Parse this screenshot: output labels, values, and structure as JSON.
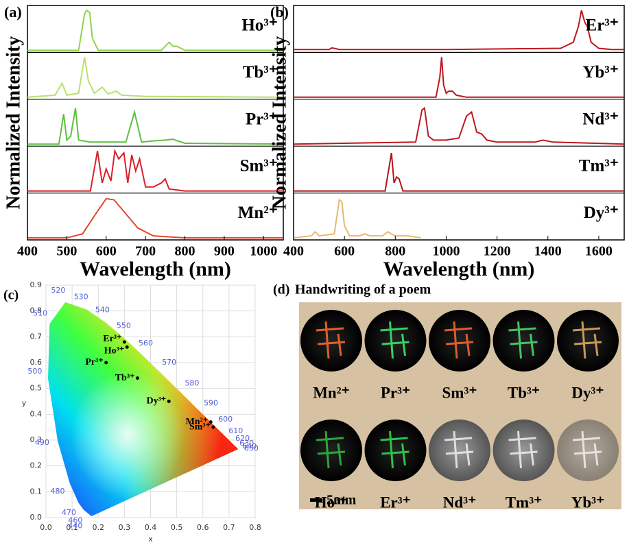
{
  "chart_data": [
    {
      "type": "stacked-line",
      "label": "(a)",
      "xlabel": "Wavelength (nm)",
      "ylabel": "Normalized Intensity",
      "xlim": [
        400,
        1050
      ],
      "xticks": [
        400,
        500,
        600,
        700,
        800,
        900,
        1000
      ],
      "series": [
        {
          "name": "Ho³⁺",
          "color": "#8fd44a",
          "x": [
            400,
            530,
            545,
            550,
            558,
            565,
            580,
            740,
            760,
            770,
            780,
            800,
            1050
          ],
          "values": [
            0,
            0,
            0.9,
            1,
            0.95,
            0.3,
            0,
            0,
            0.2,
            0.1,
            0.1,
            0,
            0
          ]
        },
        {
          "name": "Tb³⁺",
          "color": "#b8e070",
          "x": [
            400,
            470,
            488,
            500,
            530,
            545,
            555,
            570,
            590,
            605,
            625,
            640,
            700,
            1050
          ],
          "values": [
            0,
            0.05,
            0.35,
            0.05,
            0.1,
            1,
            0.4,
            0.1,
            0.25,
            0.08,
            0.15,
            0.05,
            0.02,
            0
          ]
        },
        {
          "name": "Pr³⁺",
          "color": "#5cc040",
          "x": [
            400,
            480,
            492,
            500,
            510,
            522,
            530,
            560,
            600,
            650,
            672,
            690,
            720,
            750,
            770,
            800,
            1050
          ],
          "values": [
            0,
            0,
            0.75,
            0.1,
            0.2,
            0.9,
            0.1,
            0.05,
            0.05,
            0.05,
            0.8,
            0.05,
            0.08,
            0.1,
            0.12,
            0.02,
            0
          ]
        },
        {
          "name": "Sm³⁺",
          "color": "#d8202a",
          "x": [
            400,
            560,
            578,
            590,
            600,
            612,
            622,
            632,
            645,
            655,
            665,
            675,
            685,
            700,
            720,
            740,
            750,
            760,
            800,
            1050
          ],
          "values": [
            0,
            0,
            1,
            0.2,
            0.55,
            0.25,
            1,
            0.8,
            0.95,
            0.2,
            0.9,
            0.5,
            0.8,
            0.1,
            0.1,
            0.2,
            0.3,
            0.05,
            0,
            0
          ]
        },
        {
          "name": "Mn²⁺",
          "color": "#e8452c",
          "x": [
            400,
            500,
            540,
            570,
            600,
            620,
            650,
            680,
            720,
            800,
            1050
          ],
          "values": [
            0,
            0,
            0.1,
            0.55,
            0.98,
            0.95,
            0.6,
            0.25,
            0.05,
            0,
            0
          ]
        }
      ]
    },
    {
      "type": "stacked-line",
      "label": "(b)",
      "xlabel": "Wavelength (nm)",
      "ylabel": "Normalized Intensity",
      "xlim": [
        400,
        1700
      ],
      "xticks": [
        400,
        600,
        800,
        1000,
        1200,
        1400,
        1600
      ],
      "series": [
        {
          "name": "Er³⁺",
          "color": "#c0161e",
          "x": [
            400,
            540,
            550,
            560,
            580,
            1000,
            1450,
            1500,
            1520,
            1532,
            1545,
            1555,
            1570,
            1600,
            1650,
            1700
          ],
          "values": [
            0.02,
            0.02,
            0.06,
            0.05,
            0.02,
            0.02,
            0.05,
            0.2,
            0.6,
            1,
            0.7,
            0.6,
            0.2,
            0.05,
            0.02,
            0.02
          ]
        },
        {
          "name": "Yb³⁺",
          "color": "#c0161e",
          "x": [
            400,
            960,
            975,
            982,
            990,
            1000,
            1010,
            1025,
            1040,
            1080,
            1700
          ],
          "values": [
            0,
            0,
            0.5,
            1,
            0.3,
            0.1,
            0.15,
            0.15,
            0.05,
            0,
            0
          ]
        },
        {
          "name": "Nd³⁺",
          "color": "#c0161e",
          "x": [
            400,
            880,
            905,
            915,
            930,
            950,
            1000,
            1050,
            1080,
            1100,
            1120,
            1140,
            1160,
            1200,
            1350,
            1380,
            1420,
            1700
          ],
          "values": [
            0,
            0.05,
            0.85,
            0.9,
            0.2,
            0.1,
            0.1,
            0.15,
            0.7,
            0.8,
            0.3,
            0.25,
            0.1,
            0.05,
            0.05,
            0.1,
            0.05,
            0
          ]
        },
        {
          "name": "Tm³⁺",
          "color": "#b0161c",
          "x": [
            400,
            760,
            785,
            795,
            805,
            815,
            830,
            1700
          ],
          "values": [
            0,
            0,
            0.95,
            0.2,
            0.35,
            0.3,
            0,
            0
          ]
        },
        {
          "name": "Dy³⁺",
          "color": "#e8b870",
          "x": [
            400,
            470,
            485,
            500,
            560,
            580,
            590,
            600,
            620,
            660,
            680,
            700,
            750,
            770,
            800,
            850,
            900
          ],
          "values": [
            0,
            0.05,
            0.15,
            0.05,
            0.1,
            0.95,
            0.9,
            0.3,
            0.05,
            0.05,
            0.1,
            0.05,
            0.05,
            0.15,
            0.05,
            0.05,
            0
          ]
        }
      ]
    },
    {
      "type": "scatter",
      "label": "(c)",
      "xlabel": "x",
      "ylabel": "y",
      "xlim": [
        0,
        0.8
      ],
      "ylim": [
        0,
        0.9
      ],
      "xticks": [
        {
          "value": 0,
          "label": "0.0"
        },
        0.1,
        0.2,
        0.3,
        0.4,
        0.5,
        0.6,
        0.7,
        0.8
      ],
      "yticks": [
        {
          "value": 0,
          "label": "0.0"
        },
        0.1,
        0.2,
        0.3,
        0.4,
        0.5,
        0.6,
        0.7,
        0.8,
        0.9
      ],
      "locus_labels": [
        440,
        460,
        470,
        480,
        490,
        500,
        510,
        520,
        530,
        540,
        550,
        560,
        570,
        580,
        590,
        600,
        610,
        620,
        630,
        640,
        650
      ],
      "points": [
        {
          "name": "Er³⁺",
          "x": 0.3,
          "y": 0.68
        },
        {
          "name": "Ho³⁺",
          "x": 0.31,
          "y": 0.66
        },
        {
          "name": "Pr³⁺",
          "x": 0.23,
          "y": 0.6
        },
        {
          "name": "Tb³⁺",
          "x": 0.35,
          "y": 0.54
        },
        {
          "name": "Dy³⁺",
          "x": 0.47,
          "y": 0.45
        },
        {
          "name": "Mn²⁺",
          "x": 0.63,
          "y": 0.37
        },
        {
          "name": "Sm³⁺",
          "x": 0.64,
          "y": 0.35
        }
      ]
    }
  ],
  "photo_panel": {
    "label": "(d)",
    "title": "Handwriting of a poem",
    "items": [
      "Mn²⁺",
      "Pr³⁺",
      "Sm³⁺",
      "Tb³⁺",
      "Dy³⁺",
      "Ho³⁺",
      "Er³⁺",
      "Nd³⁺",
      "Tm³⁺",
      "Yb³⁺"
    ],
    "scale": "5mm"
  }
}
